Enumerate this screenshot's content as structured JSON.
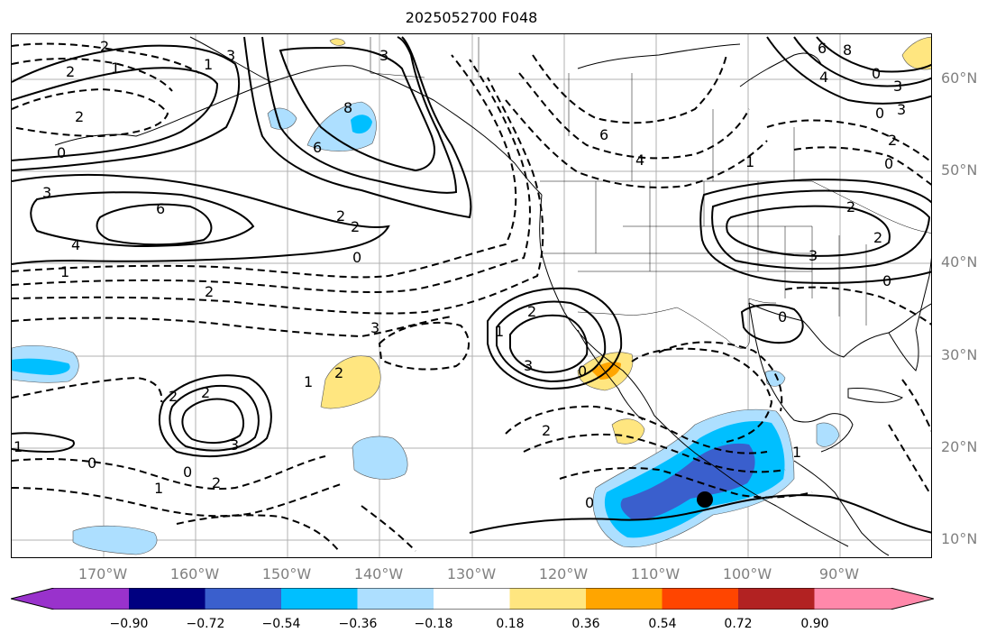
{
  "title": "2025052700 F048",
  "map": {
    "lat_labels": [
      "60°N",
      "50°N",
      "40°N",
      "30°N",
      "20°N",
      "10°N"
    ],
    "lon_labels": [
      "170°W",
      "160°W",
      "150°W",
      "140°W",
      "130°W",
      "120°W",
      "110°W",
      "100°W",
      "90°W"
    ],
    "contour_labels": [
      "2",
      "1",
      "2",
      "2",
      "0",
      "3",
      "1",
      "6",
      "4",
      "1",
      "3",
      "8",
      "6",
      "2",
      "2",
      "0",
      "2",
      "6",
      "4",
      "6",
      "3",
      "2",
      "3",
      "2",
      "8",
      "4",
      "3",
      "0",
      "2",
      "1",
      "3",
      "0",
      "1",
      "2",
      "2",
      "3",
      "2",
      "3",
      "0",
      "1",
      "0",
      "2",
      "1",
      "0",
      "0",
      "2",
      "0",
      "3",
      "1",
      "1",
      "2",
      "0",
      "0"
    ],
    "colors": {
      "dark_blue": "#3a5fcd",
      "blue": "#00bfff",
      "light_blue": "#addfff",
      "yellow": "#ffe680",
      "orange": "#ffa500",
      "marker": "#000000"
    }
  },
  "colorbar": {
    "tick_labels": [
      "−0.90",
      "−0.72",
      "−0.54",
      "−0.36",
      "−0.18",
      "0.18",
      "0.36",
      "0.54",
      "0.72",
      "0.90"
    ],
    "colors": [
      "#9932cc",
      "#000080",
      "#3a5fcd",
      "#00bfff",
      "#addfff",
      "#ffffff",
      "#ffe680",
      "#ffa500",
      "#ff4500",
      "#b22222",
      "#ff88aa"
    ]
  }
}
